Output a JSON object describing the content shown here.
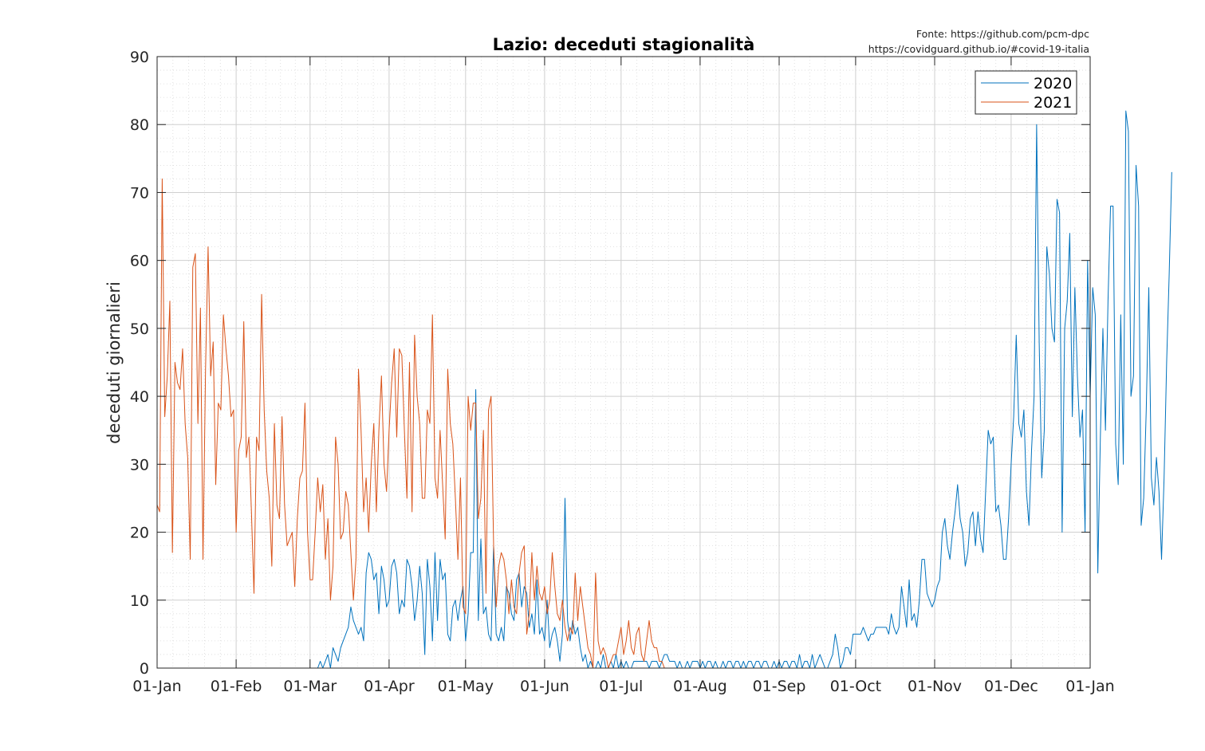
{
  "source_lines": [
    "Fonte: https://github.com/pcm-dpc",
    "https://covidguard.github.io/#covid-19-italia"
  ],
  "chart_data": {
    "type": "line",
    "title": "Lazio: deceduti stagionalità",
    "xlabel": "",
    "ylabel": "deceduti giornalieri",
    "ylim": [
      0,
      90
    ],
    "yticks": [
      0,
      10,
      20,
      30,
      40,
      50,
      60,
      70,
      80,
      90
    ],
    "xlim_day": [
      0,
      366
    ],
    "xticks": [
      {
        "label": "01-Jan",
        "day": 0
      },
      {
        "label": "01-Feb",
        "day": 31
      },
      {
        "label": "01-Mar",
        "day": 60
      },
      {
        "label": "01-Apr",
        "day": 91
      },
      {
        "label": "01-May",
        "day": 121
      },
      {
        "label": "01-Jun",
        "day": 152
      },
      {
        "label": "01-Jul",
        "day": 182
      },
      {
        "label": "01-Aug",
        "day": 213
      },
      {
        "label": "01-Sep",
        "day": 244
      },
      {
        "label": "01-Oct",
        "day": 274
      },
      {
        "label": "01-Nov",
        "day": 305
      },
      {
        "label": "01-Dec",
        "day": 335
      },
      {
        "label": "01-Jan",
        "day": 366
      }
    ],
    "grid": true,
    "minor_grid": true,
    "legend_position": "top-right",
    "colors": {
      "2020": "#0072bd",
      "2021": "#d95319"
    },
    "series": [
      {
        "name": "2020",
        "start_day": 55,
        "values": [
          0,
          0,
          0,
          0,
          0,
          0,
          0,
          0,
          0,
          1,
          0,
          1,
          2,
          0,
          3,
          2,
          1,
          3,
          4,
          5,
          6,
          9,
          7,
          6,
          5,
          6,
          4,
          14,
          17,
          16,
          13,
          14,
          8,
          15,
          13,
          9,
          10,
          15,
          16,
          14,
          8,
          10,
          9,
          16,
          15,
          12,
          7,
          10,
          15,
          11,
          2,
          16,
          12,
          4,
          17,
          7,
          16,
          13,
          14,
          5,
          4,
          9,
          10,
          7,
          10,
          12,
          4,
          8,
          17,
          17,
          41,
          7,
          19,
          8,
          9,
          5,
          4,
          18,
          5,
          4,
          6,
          4,
          12,
          11,
          8,
          7,
          13,
          14,
          9,
          12,
          11,
          6,
          8,
          5,
          13,
          5,
          6,
          4,
          10,
          3,
          5,
          6,
          4,
          1,
          5,
          25,
          7,
          4,
          7,
          5,
          6,
          3,
          1,
          2,
          0,
          1,
          0,
          0,
          1,
          0,
          2,
          0,
          0,
          1,
          0,
          2,
          0,
          1,
          0,
          1,
          0,
          0,
          1,
          1,
          1,
          1,
          1,
          1,
          0,
          1,
          1,
          1,
          0,
          1,
          2,
          2,
          1,
          1,
          1,
          0,
          1,
          0,
          0,
          1,
          0,
          1,
          1,
          1,
          0,
          1,
          0,
          1,
          1,
          0,
          1,
          0,
          0,
          1,
          0,
          1,
          1,
          0,
          1,
          1,
          0,
          1,
          0,
          1,
          1,
          0,
          1,
          1,
          0,
          1,
          1,
          0,
          0,
          1,
          0,
          1,
          0,
          1,
          1,
          0,
          1,
          1,
          0,
          2,
          0,
          1,
          1,
          0,
          2,
          0,
          1,
          2,
          1,
          0,
          0,
          1,
          2,
          5,
          3,
          0,
          1,
          3,
          3,
          2,
          5,
          5,
          5,
          5,
          6,
          5,
          4,
          5,
          5,
          6,
          6,
          6,
          6,
          6,
          5,
          8,
          6,
          5,
          6,
          12,
          9,
          6,
          13,
          7,
          8,
          6,
          10,
          16,
          16,
          11,
          10,
          9,
          10,
          12,
          13,
          20,
          22,
          18,
          16,
          20,
          23,
          27,
          22,
          20,
          15,
          17,
          22,
          23,
          18,
          23,
          19,
          17,
          26,
          35,
          33,
          34,
          23,
          24,
          21,
          16,
          16,
          22,
          30,
          37,
          49,
          36,
          34,
          38,
          26,
          21,
          32,
          40,
          80,
          48,
          28,
          35,
          62,
          58,
          50,
          48,
          69,
          67,
          20,
          50,
          54,
          64,
          37,
          56,
          43,
          34,
          38,
          20,
          60,
          40,
          56,
          52,
          14,
          34,
          50,
          35,
          54,
          68,
          68,
          33,
          27,
          52,
          30,
          82,
          79,
          40,
          43,
          74,
          68,
          21,
          25,
          38,
          56,
          28,
          24,
          31,
          26,
          16,
          28,
          45,
          58,
          73
        ]
      },
      {
        "name": "2021",
        "start_day": 0,
        "values": [
          24,
          23,
          72,
          37,
          43,
          54,
          17,
          45,
          42,
          41,
          47,
          36,
          31,
          16,
          59,
          61,
          36,
          53,
          16,
          44,
          62,
          43,
          48,
          27,
          39,
          38,
          52,
          47,
          43,
          37,
          38,
          20,
          32,
          34,
          51,
          31,
          34,
          23,
          11,
          34,
          32,
          55,
          38,
          29,
          25,
          15,
          36,
          24,
          22,
          37,
          24,
          18,
          19,
          20,
          12,
          22,
          28,
          29,
          39,
          20,
          13,
          13,
          20,
          28,
          23,
          27,
          16,
          22,
          10,
          15,
          34,
          30,
          19,
          20,
          26,
          24,
          17,
          10,
          16,
          44,
          35,
          23,
          28,
          20,
          30,
          36,
          23,
          35,
          43,
          30,
          26,
          35,
          42,
          47,
          34,
          47,
          46,
          35,
          25,
          45,
          23,
          49,
          40,
          36,
          25,
          25,
          38,
          36,
          52,
          28,
          25,
          35,
          27,
          19,
          44,
          36,
          33,
          25,
          16,
          28,
          9,
          8,
          40,
          35,
          39,
          39,
          22,
          25,
          35,
          11,
          38,
          40,
          18,
          9,
          15,
          17,
          16,
          13,
          8,
          13,
          9,
          8,
          14,
          17,
          18,
          5,
          8,
          17,
          10,
          15,
          11,
          10,
          12,
          8,
          10,
          17,
          12,
          8,
          7,
          10,
          6,
          4,
          6,
          5,
          14,
          7,
          12,
          9,
          6,
          3,
          2,
          0,
          14,
          4,
          2,
          3,
          2,
          0,
          1,
          2,
          2,
          4,
          6,
          2,
          4,
          7,
          3,
          2,
          5,
          6,
          2,
          1,
          4,
          7,
          4,
          3,
          3,
          1,
          1,
          0
        ]
      }
    ]
  }
}
